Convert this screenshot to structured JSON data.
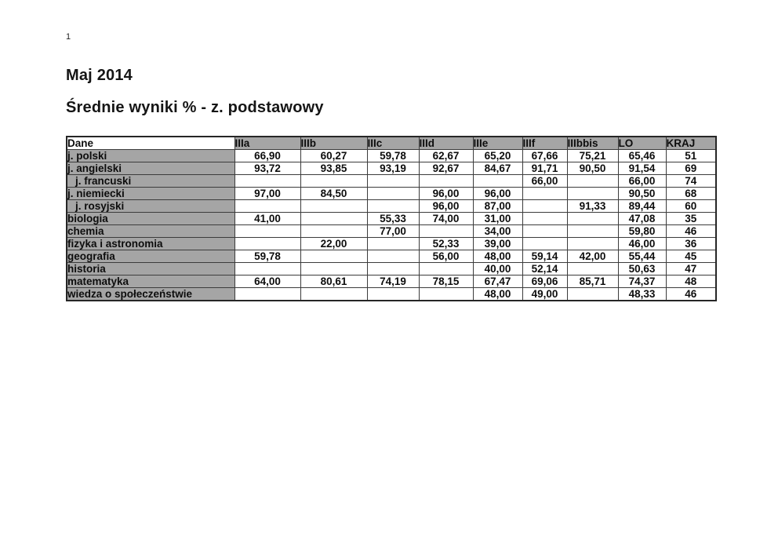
{
  "page": {
    "number": "1",
    "heading1": "Maj 2014",
    "heading2": "Średnie wyniki % - z. podstawowy"
  },
  "colors": {
    "page_background": "#ffffff",
    "cell_shading_gray": "#a5a5a5",
    "border": "#3c3c3c",
    "text": "#0d0d0d"
  },
  "table": {
    "columns": [
      "Dane",
      "IIIa",
      "IIIb",
      "IIIc",
      "IIId",
      "IIIe",
      "IIIf",
      "IIIbbis",
      "LO",
      "KRAJ"
    ],
    "rows": [
      {
        "label": "j. polski",
        "indent": false,
        "values": [
          "66,90",
          "60,27",
          "59,78",
          "62,67",
          "65,20",
          "67,66",
          "75,21",
          "65,46",
          "51"
        ]
      },
      {
        "label": "j. angielski",
        "indent": false,
        "values": [
          "93,72",
          "93,85",
          "93,19",
          "92,67",
          "84,67",
          "91,71",
          "90,50",
          "91,54",
          "69"
        ]
      },
      {
        "label": "j. francuski",
        "indent": true,
        "values": [
          "",
          "",
          "",
          "",
          "",
          "66,00",
          "",
          "66,00",
          "74"
        ]
      },
      {
        "label": "j. niemiecki",
        "indent": false,
        "values": [
          "97,00",
          "84,50",
          "",
          "96,00",
          "96,00",
          "",
          "",
          "90,50",
          "68"
        ]
      },
      {
        "label": "j. rosyjski",
        "indent": true,
        "values": [
          "",
          "",
          "",
          "96,00",
          "87,00",
          "",
          "91,33",
          "89,44",
          "60"
        ]
      },
      {
        "label": "biologia",
        "indent": false,
        "values": [
          "41,00",
          "",
          "55,33",
          "74,00",
          "31,00",
          "",
          "",
          "47,08",
          "35"
        ]
      },
      {
        "label": "chemia",
        "indent": false,
        "values": [
          "",
          "",
          "77,00",
          "",
          "34,00",
          "",
          "",
          "59,80",
          "46"
        ]
      },
      {
        "label": "fizyka i astronomia",
        "indent": false,
        "values": [
          "",
          "22,00",
          "",
          "52,33",
          "39,00",
          "",
          "",
          "46,00",
          "36"
        ]
      },
      {
        "label": "geografia",
        "indent": false,
        "values": [
          "59,78",
          "",
          "",
          "56,00",
          "48,00",
          "59,14",
          "42,00",
          "55,44",
          "45"
        ]
      },
      {
        "label": "historia",
        "indent": false,
        "values": [
          "",
          "",
          "",
          "",
          "40,00",
          "52,14",
          "",
          "50,63",
          "47"
        ]
      },
      {
        "label": "matematyka",
        "indent": false,
        "values": [
          "64,00",
          "80,61",
          "74,19",
          "78,15",
          "67,47",
          "69,06",
          "85,71",
          "74,37",
          "48"
        ]
      },
      {
        "label": "wiedza o społeczeństwie",
        "indent": false,
        "values": [
          "",
          "",
          "",
          "",
          "48,00",
          "49,00",
          "",
          "48,33",
          "46"
        ]
      }
    ]
  }
}
